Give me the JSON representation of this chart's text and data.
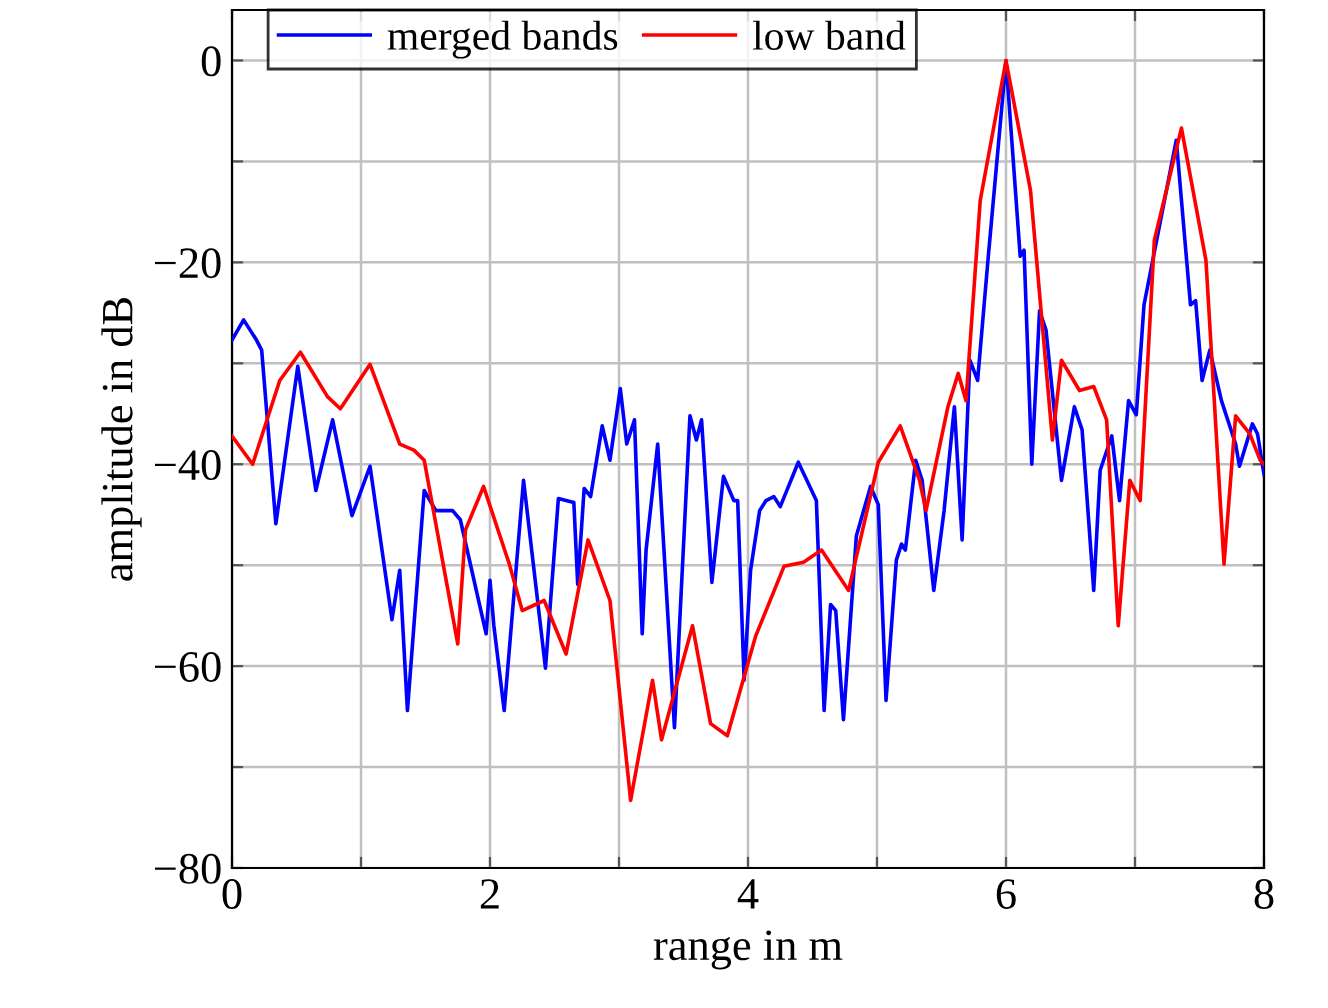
{
  "chart_data": {
    "type": "line",
    "xlabel": "range in m",
    "ylabel": "amplitude in dB",
    "xlim": [
      0,
      8
    ],
    "ylim": [
      -80,
      5
    ],
    "xticks": [
      0,
      {
        "value": 1,
        "label": null
      },
      2,
      {
        "value": 3,
        "label": null
      },
      4,
      {
        "value": 5,
        "label": null
      },
      6,
      {
        "value": 7,
        "label": null
      },
      8
    ],
    "yticks": [
      {
        "value": -80,
        "label": "−80"
      },
      {
        "value": -70,
        "label": null
      },
      {
        "value": -60,
        "label": "−60"
      },
      {
        "value": -50,
        "label": null
      },
      {
        "value": -40,
        "label": "−40"
      },
      {
        "value": -30,
        "label": null
      },
      {
        "value": -20,
        "label": "−20"
      },
      {
        "value": -10,
        "label": null
      },
      0
    ],
    "grid": true,
    "legend": "top",
    "line_style": "solid",
    "marker": "none",
    "series": [
      {
        "name": "merged bands",
        "color": "#0000ff",
        "x": [
          0,
          0.09,
          0.19,
          0.23,
          0.34,
          0.51,
          0.65,
          0.78,
          0.93,
          1.07,
          1.24,
          1.3,
          1.36,
          1.49,
          1.58,
          1.71,
          1.77,
          1.97,
          2.0,
          2.03,
          2.11,
          2.26,
          2.43,
          2.53,
          2.65,
          2.68,
          2.73,
          2.78,
          2.87,
          2.93,
          3.01,
          3.06,
          3.12,
          3.18,
          3.21,
          3.3,
          3.43,
          3.55,
          3.6,
          3.64,
          3.72,
          3.81,
          3.89,
          3.92,
          3.97,
          4.02,
          4.09,
          4.14,
          4.2,
          4.25,
          4.39,
          4.53,
          4.59,
          4.64,
          4.68,
          4.74,
          4.84,
          4.95,
          5.01,
          5.07,
          5.15,
          5.19,
          5.22,
          5.3,
          5.35,
          5.44,
          5.52,
          5.6,
          5.66,
          5.72,
          5.78,
          5.86,
          6.0,
          6.11,
          6.14,
          6.2,
          6.26,
          6.31,
          6.43,
          6.53,
          6.59,
          6.68,
          6.73,
          6.82,
          6.88,
          6.95,
          7.01,
          7.07,
          7.32,
          7.43,
          7.47,
          7.52,
          7.58,
          7.67,
          7.78,
          7.81,
          7.91,
          7.95,
          8.0
        ],
        "values": [
          -27.7,
          -25.7,
          -27.7,
          -28.7,
          -45.9,
          -30.3,
          -42.6,
          -35.6,
          -45.1,
          -40.2,
          -55.4,
          -50.5,
          -64.4,
          -42.6,
          -44.6,
          -44.6,
          -45.5,
          -56.8,
          -51.5,
          -56,
          -64.4,
          -41.6,
          -60.2,
          -43.4,
          -43.8,
          -51.9,
          -42.4,
          -43.2,
          -36.2,
          -39.6,
          -32.5,
          -38,
          -35.6,
          -56.8,
          -48.5,
          -38,
          -66.1,
          -35.2,
          -37.6,
          -35.6,
          -51.7,
          -41.2,
          -43.6,
          -43.6,
          -61.4,
          -50.5,
          -44.6,
          -43.6,
          -43.2,
          -44.2,
          -39.8,
          -43.6,
          -64.4,
          -53.9,
          -54.5,
          -65.3,
          -47.1,
          -42.2,
          -44,
          -63.4,
          -49.5,
          -47.9,
          -48.5,
          -39.6,
          -41.6,
          -52.5,
          -44.6,
          -34.3,
          -47.5,
          -29.7,
          -31.7,
          -19.8,
          0,
          -19.4,
          -18.8,
          -40,
          -24.8,
          -26.7,
          -41.6,
          -34.3,
          -36.6,
          -52.5,
          -40.6,
          -37.2,
          -43.6,
          -33.7,
          -35.1,
          -24.2,
          -7.9,
          -24.2,
          -23.8,
          -31.7,
          -28.7,
          -33.7,
          -38,
          -40.2,
          -36,
          -37,
          -41
        ]
      },
      {
        "name": "low band",
        "color": "#ff0000",
        "x": [
          0,
          0.16,
          0.37,
          0.53,
          0.74,
          0.84,
          1.07,
          1.3,
          1.41,
          1.49,
          1.75,
          1.81,
          1.95,
          2.15,
          2.25,
          2.42,
          2.59,
          2.76,
          2.93,
          3.09,
          3.26,
          3.33,
          3.57,
          3.71,
          3.84,
          4.06,
          4.28,
          4.43,
          4.57,
          4.78,
          5.01,
          5.18,
          5.33,
          5.38,
          5.55,
          5.63,
          5.69,
          5.8,
          6.0,
          6.19,
          6.36,
          6.43,
          6.57,
          6.68,
          6.78,
          6.87,
          6.96,
          7.04,
          7.15,
          7.36,
          7.55,
          7.69,
          7.78,
          7.89,
          7.97,
          8.0
        ],
        "values": [
          -37.2,
          -40,
          -31.7,
          -28.9,
          -33.3,
          -34.5,
          -30.1,
          -38,
          -38.6,
          -39.6,
          -57.8,
          -46.5,
          -42.2,
          -49.9,
          -54.5,
          -53.5,
          -58.8,
          -47.5,
          -53.5,
          -73.3,
          -61.4,
          -67.3,
          -56,
          -65.7,
          -66.9,
          -57,
          -50.1,
          -49.7,
          -48.5,
          -52.5,
          -39.8,
          -36.2,
          -41.6,
          -44.6,
          -34.3,
          -31,
          -33.7,
          -13.9,
          0,
          -12.9,
          -37.6,
          -29.7,
          -32.7,
          -32.3,
          -35.6,
          -56,
          -41.6,
          -43.6,
          -17.8,
          -6.7,
          -19.8,
          -49.9,
          -35.2,
          -37,
          -39.6,
          -40
        ]
      }
    ]
  }
}
